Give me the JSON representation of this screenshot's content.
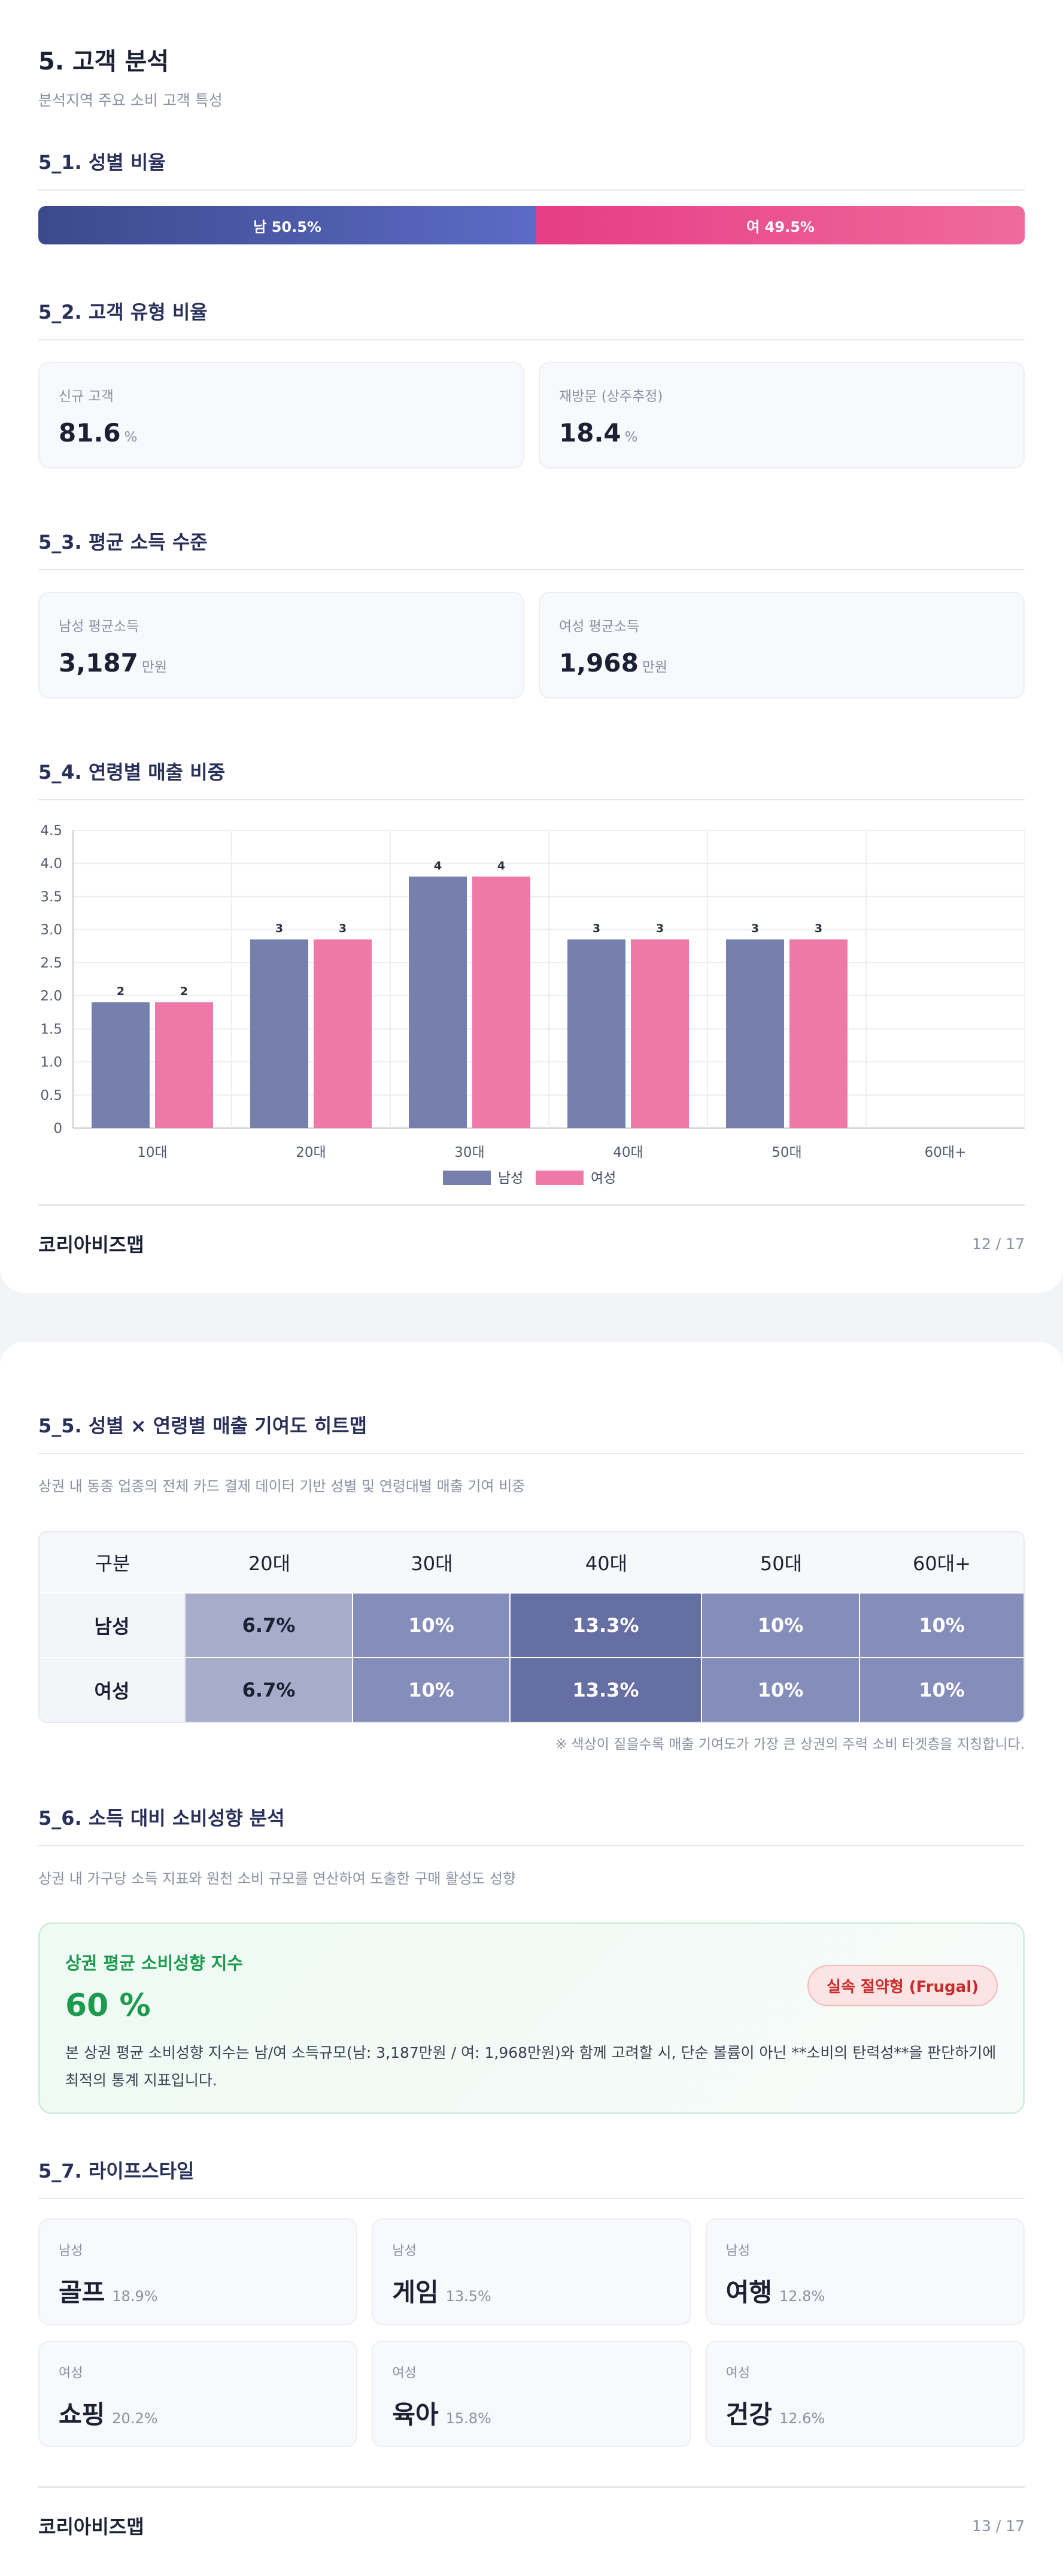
{
  "page1": {
    "title": "5. 고객 분석",
    "subtitle": "분석지역 주요 소비 고객 특성",
    "gender": {
      "heading": "5_1. 성별 비율",
      "male_label": "남 50.5%",
      "female_label": "여 49.5%",
      "male_ratio": 50.5,
      "female_ratio": 49.5,
      "male_color": "#4b59a8",
      "female_color": "#ec4e8d"
    },
    "customer_type": {
      "heading": "5_2. 고객 유형 비율",
      "cards": [
        {
          "label": "신규 고객",
          "value": "81.6",
          "unit": "%"
        },
        {
          "label": "재방문 (상주추정)",
          "value": "18.4",
          "unit": "%"
        }
      ]
    },
    "income": {
      "heading": "5_3. 평균 소득 수준",
      "cards": [
        {
          "label": "남성 평균소득",
          "value": "3,187",
          "unit": "만원"
        },
        {
          "label": "여성 평균소득",
          "value": "1,968",
          "unit": "만원"
        }
      ]
    },
    "age_sales": {
      "heading": "5_4. 연령별 매출 비중"
    },
    "footer": {
      "brand": "코리아비즈맵",
      "page": "12 / 17"
    }
  },
  "chart_data": {
    "type": "bar",
    "categories": [
      "10대",
      "20대",
      "30대",
      "40대",
      "50대",
      "60대+"
    ],
    "series": [
      {
        "name": "남성",
        "values": [
          1.9,
          2.85,
          3.8,
          2.85,
          2.85,
          0
        ],
        "labels": [
          "2",
          "3",
          "4",
          "3",
          "3",
          ""
        ],
        "color": "#7780ad"
      },
      {
        "name": "여성",
        "values": [
          1.9,
          2.85,
          3.8,
          2.85,
          2.85,
          0
        ],
        "labels": [
          "2",
          "3",
          "4",
          "3",
          "3",
          ""
        ],
        "color": "#ee79a8"
      }
    ],
    "ylim": [
      0,
      4.5
    ],
    "yticks": [
      "0",
      "0.5",
      "1.0",
      "1.5",
      "2.0",
      "2.5",
      "3.0",
      "3.5",
      "4.0",
      "4.5"
    ],
    "grid": true,
    "legend": "bottom"
  },
  "page2": {
    "heatmap": {
      "heading": "5_5. 성별 × 연령별 매출 기여도 히트맵",
      "desc": "상권 내 동종 업종의 전체 카드 결제 데이터 기반 성별 및 연령대별 매출 기여 비중",
      "header": [
        "구분",
        "20대",
        "30대",
        "40대",
        "50대",
        "60대+"
      ],
      "rows": [
        {
          "label": "남성",
          "cells": [
            "6.7%",
            "10%",
            "13.3%",
            "10%",
            "10%"
          ]
        },
        {
          "label": "여성",
          "cells": [
            "6.7%",
            "10%",
            "13.3%",
            "10%",
            "10%"
          ]
        }
      ],
      "note": "※ 색상이 짙을수록 매출 기여도가 가장 큰 상권의 주력 소비 타겟층을 지칭합니다."
    },
    "spending": {
      "heading": "5_6. 소득 대비 소비성향 분석",
      "desc": "상권 내 가구당 소득 지표와 원천 소비 규모를 연산하여 도출한 구매 활성도 성향",
      "index_label": "상권 평균 소비성향 지수",
      "index_value": "60 %",
      "badge": "실속 절약형 (Frugal)",
      "description": "본 상권 평균 소비성향 지수는 남/여 소득규모(남: 3,187만원 / 여: 1,968만원)와 함께 고려할 시, 단순 볼륨이 아닌 **소비의 탄력성**을 판단하기에 최적의 통계 지표입니다."
    },
    "lifestyle": {
      "heading": "5_7. 라이프스타일",
      "items": [
        {
          "gender": "남성",
          "name": "골프",
          "pct": "18.9%"
        },
        {
          "gender": "남성",
          "name": "게임",
          "pct": "13.5%"
        },
        {
          "gender": "남성",
          "name": "여행",
          "pct": "12.8%"
        },
        {
          "gender": "여성",
          "name": "쇼핑",
          "pct": "20.2%"
        },
        {
          "gender": "여성",
          "name": "육아",
          "pct": "15.8%"
        },
        {
          "gender": "여성",
          "name": "건강",
          "pct": "12.6%"
        }
      ]
    },
    "footer": {
      "brand": "코리아비즈맵",
      "page": "13 / 17"
    }
  }
}
